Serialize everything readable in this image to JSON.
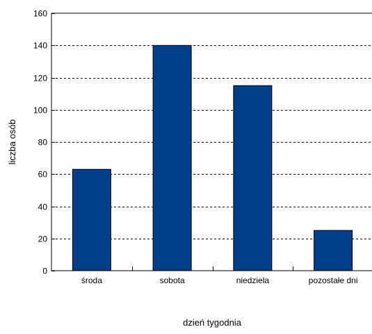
{
  "chart_data": {
    "type": "bar",
    "categories": [
      "środa",
      "sobota",
      "niedziela",
      "pozostałe dni"
    ],
    "values": [
      63,
      140,
      115,
      25
    ],
    "xlabel": "dzień tygodnia",
    "ylabel": "liczba osób",
    "ylim": [
      0,
      160
    ],
    "yticks": [
      0,
      20,
      40,
      60,
      80,
      100,
      120,
      140,
      160
    ],
    "grid": "horizontal dashed",
    "bar_color": "#003F87",
    "bar_edge_color": "#000000"
  }
}
